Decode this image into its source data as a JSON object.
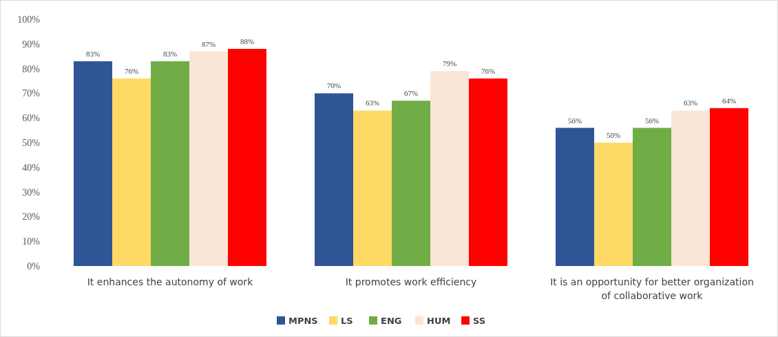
{
  "chart_data": {
    "type": "bar",
    "categories": [
      "It enhances the autonomy of work",
      "It promotes work efficiency",
      "It is an opportunity for better organization of collaborative work"
    ],
    "series": [
      {
        "name": "MPNS",
        "color": "#2f5597",
        "values": [
          83,
          70,
          56
        ],
        "value_labels": [
          "83%",
          "70%",
          "56%"
        ]
      },
      {
        "name": "LS",
        "color": "#ffd966",
        "values": [
          76,
          63,
          50
        ],
        "value_labels": [
          "76%",
          "63%",
          "50%"
        ]
      },
      {
        "name": "ENG",
        "color": "#70ad47",
        "values": [
          83,
          67,
          56
        ],
        "value_labels": [
          "83%",
          "67%",
          "56%"
        ]
      },
      {
        "name": "HUM",
        "color": "#fbe5d6",
        "values": [
          87,
          79,
          63
        ],
        "value_labels": [
          "87%",
          "79%",
          "63%"
        ]
      },
      {
        "name": "SS",
        "color": "#ff0000",
        "values": [
          88,
          76,
          64
        ],
        "value_labels": [
          "88%",
          "76%",
          "64%"
        ]
      }
    ],
    "ylim": [
      0,
      100
    ],
    "yticks": [
      {
        "value": 0,
        "label": "0%"
      },
      {
        "value": 10,
        "label": "10%"
      },
      {
        "value": 20,
        "label": "20%"
      },
      {
        "value": 30,
        "label": "30%"
      },
      {
        "value": 40,
        "label": "40%"
      },
      {
        "value": 50,
        "label": "50%"
      },
      {
        "value": 60,
        "label": "60%"
      },
      {
        "value": 70,
        "label": "70%"
      },
      {
        "value": 80,
        "label": "80%"
      },
      {
        "value": 90,
        "label": "90%"
      },
      {
        "value": 100,
        "label": "100%"
      }
    ],
    "grid": false,
    "legend": "bottom"
  }
}
